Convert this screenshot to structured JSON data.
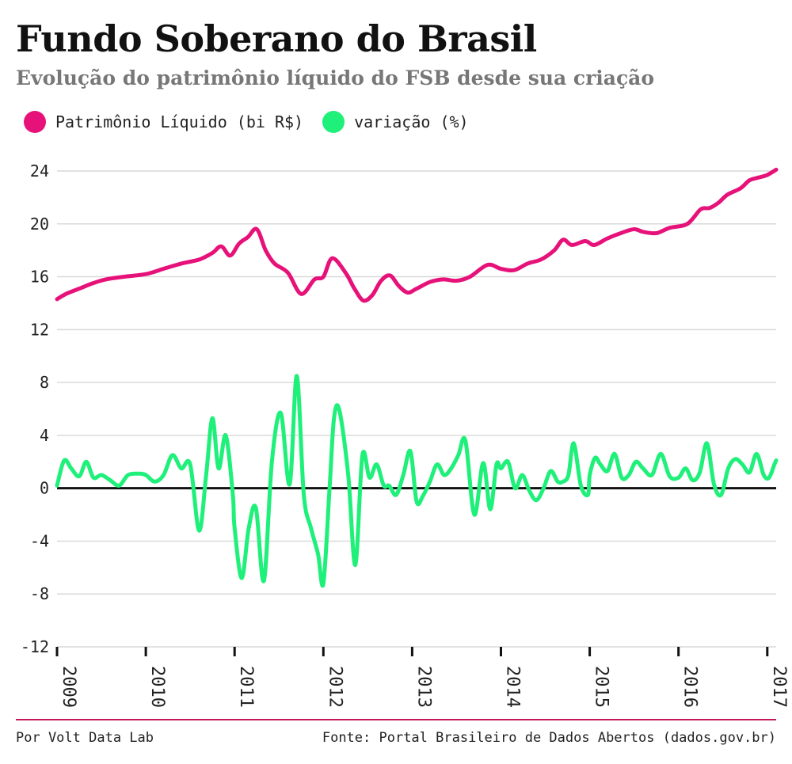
{
  "title": "Fundo Soberano do Brasil",
  "subtitle": "Evolução do patrimônio líquido do FSB desde sua criação",
  "footer": {
    "credit": "Por Volt Data Lab",
    "source": "Fonte: Portal Brasileiro de Dados Abertos (dados.gov.br)"
  },
  "chart_data": {
    "type": "line",
    "title": "Fundo Soberano do Brasil",
    "subtitle": "Evolução do patrimônio líquido do FSB desde sua criação",
    "xlabel": "",
    "ylabel": "",
    "ylim": [
      -12,
      24
    ],
    "xlim": [
      2009.0,
      2017.1
    ],
    "grid": true,
    "legend_position": "top-left",
    "y_ticks": [
      "24",
      "20",
      "16",
      "12",
      "8",
      "4",
      "0",
      "-4",
      "-8",
      "-12"
    ],
    "x_ticks": [
      "2009",
      "2010",
      "2011",
      "2012",
      "2013",
      "2014",
      "2015",
      "2016",
      "2017"
    ],
    "series": [
      {
        "name": "Patrimônio Líquido (bi R$)",
        "color": "#e6127a",
        "x": [
          2009.0,
          2009.1,
          2009.25,
          2009.4,
          2009.55,
          2009.75,
          2010.0,
          2010.2,
          2010.4,
          2010.6,
          2010.75,
          2010.85,
          2010.95,
          2011.05,
          2011.15,
          2011.25,
          2011.35,
          2011.45,
          2011.6,
          2011.75,
          2011.9,
          2012.0,
          2012.1,
          2012.25,
          2012.35,
          2012.45,
          2012.55,
          2012.65,
          2012.75,
          2012.85,
          2012.95,
          2013.05,
          2013.2,
          2013.35,
          2013.5,
          2013.65,
          2013.85,
          2014.0,
          2014.15,
          2014.3,
          2014.45,
          2014.6,
          2014.7,
          2014.8,
          2014.95,
          2015.05,
          2015.2,
          2015.35,
          2015.5,
          2015.6,
          2015.75,
          2015.9,
          2016.1,
          2016.25,
          2016.35,
          2016.45,
          2016.55,
          2016.7,
          2016.8,
          2016.9,
          2017.0,
          2017.1
        ],
        "values": [
          14.3,
          14.7,
          15.1,
          15.5,
          15.8,
          16.0,
          16.2,
          16.6,
          17.0,
          17.3,
          17.8,
          18.3,
          17.6,
          18.5,
          19.0,
          19.6,
          18.0,
          17.0,
          16.3,
          14.7,
          15.8,
          16.0,
          17.4,
          16.3,
          15.1,
          14.2,
          14.6,
          15.7,
          16.1,
          15.3,
          14.8,
          15.1,
          15.6,
          15.8,
          15.7,
          16.0,
          16.9,
          16.6,
          16.5,
          17.0,
          17.3,
          18.0,
          18.8,
          18.4,
          18.7,
          18.4,
          18.9,
          19.3,
          19.6,
          19.4,
          19.3,
          19.7,
          20.0,
          21.1,
          21.2,
          21.6,
          22.2,
          22.7,
          23.3,
          23.5,
          23.7,
          24.1
        ]
      },
      {
        "name": "variação (%)",
        "color": "#1ef07a",
        "x": [
          2009.0,
          2009.08,
          2009.16,
          2009.25,
          2009.33,
          2009.41,
          2009.5,
          2009.6,
          2009.7,
          2009.8,
          2009.92,
          2010.0,
          2010.1,
          2010.2,
          2010.3,
          2010.4,
          2010.5,
          2010.6,
          2010.68,
          2010.75,
          2010.82,
          2010.9,
          2010.98,
          2011.0,
          2011.08,
          2011.16,
          2011.24,
          2011.33,
          2011.42,
          2011.52,
          2011.62,
          2011.7,
          2011.78,
          2011.86,
          2011.94,
          2012.0,
          2012.07,
          2012.12,
          2012.18,
          2012.28,
          2012.36,
          2012.44,
          2012.52,
          2012.6,
          2012.68,
          2012.74,
          2012.82,
          2012.9,
          2012.98,
          2013.05,
          2013.12,
          2013.2,
          2013.28,
          2013.36,
          2013.44,
          2013.52,
          2013.6,
          2013.7,
          2013.8,
          2013.88,
          2013.95,
          2014.0,
          2014.08,
          2014.16,
          2014.24,
          2014.32,
          2014.4,
          2014.48,
          2014.56,
          2014.64,
          2014.7,
          2014.76,
          2014.82,
          2014.9,
          2014.98,
          2015.0,
          2015.06,
          2015.12,
          2015.2,
          2015.28,
          2015.36,
          2015.44,
          2015.52,
          2015.6,
          2015.7,
          2015.8,
          2015.9,
          2016.0,
          2016.08,
          2016.16,
          2016.24,
          2016.32,
          2016.4,
          2016.48,
          2016.56,
          2016.64,
          2016.72,
          2016.8,
          2016.88,
          2016.96,
          2017.02,
          2017.08,
          2017.1
        ],
        "values": [
          0.2,
          2.1,
          1.5,
          0.9,
          2.0,
          0.8,
          1.0,
          0.6,
          0.2,
          1.0,
          1.1,
          1.0,
          0.5,
          1.0,
          2.5,
          1.5,
          1.8,
          -3.2,
          1.0,
          5.3,
          1.5,
          4.0,
          -0.5,
          -3.0,
          -6.8,
          -3.0,
          -1.5,
          -7.0,
          2.0,
          5.7,
          0.3,
          8.5,
          -0.5,
          -3.0,
          -5.0,
          -7.2,
          0.0,
          5.3,
          5.9,
          1.0,
          -5.8,
          2.5,
          0.8,
          1.8,
          0.2,
          0.2,
          -0.5,
          1.0,
          2.8,
          -1.0,
          -0.6,
          0.5,
          1.8,
          1.0,
          1.5,
          2.5,
          3.6,
          -2.0,
          1.9,
          -1.6,
          1.8,
          1.5,
          2.0,
          0.0,
          1.0,
          -0.2,
          -0.9,
          0.0,
          1.3,
          0.5,
          0.5,
          1.0,
          3.4,
          0.2,
          -0.5,
          1.0,
          2.3,
          1.8,
          1.3,
          2.6,
          0.8,
          1.0,
          2.0,
          1.5,
          1.0,
          2.6,
          0.9,
          0.8,
          1.5,
          0.6,
          1.2,
          3.4,
          0.3,
          -0.5,
          1.5,
          2.2,
          1.8,
          1.2,
          2.6,
          1.0,
          0.8,
          1.8,
          2.1
        ]
      }
    ]
  }
}
